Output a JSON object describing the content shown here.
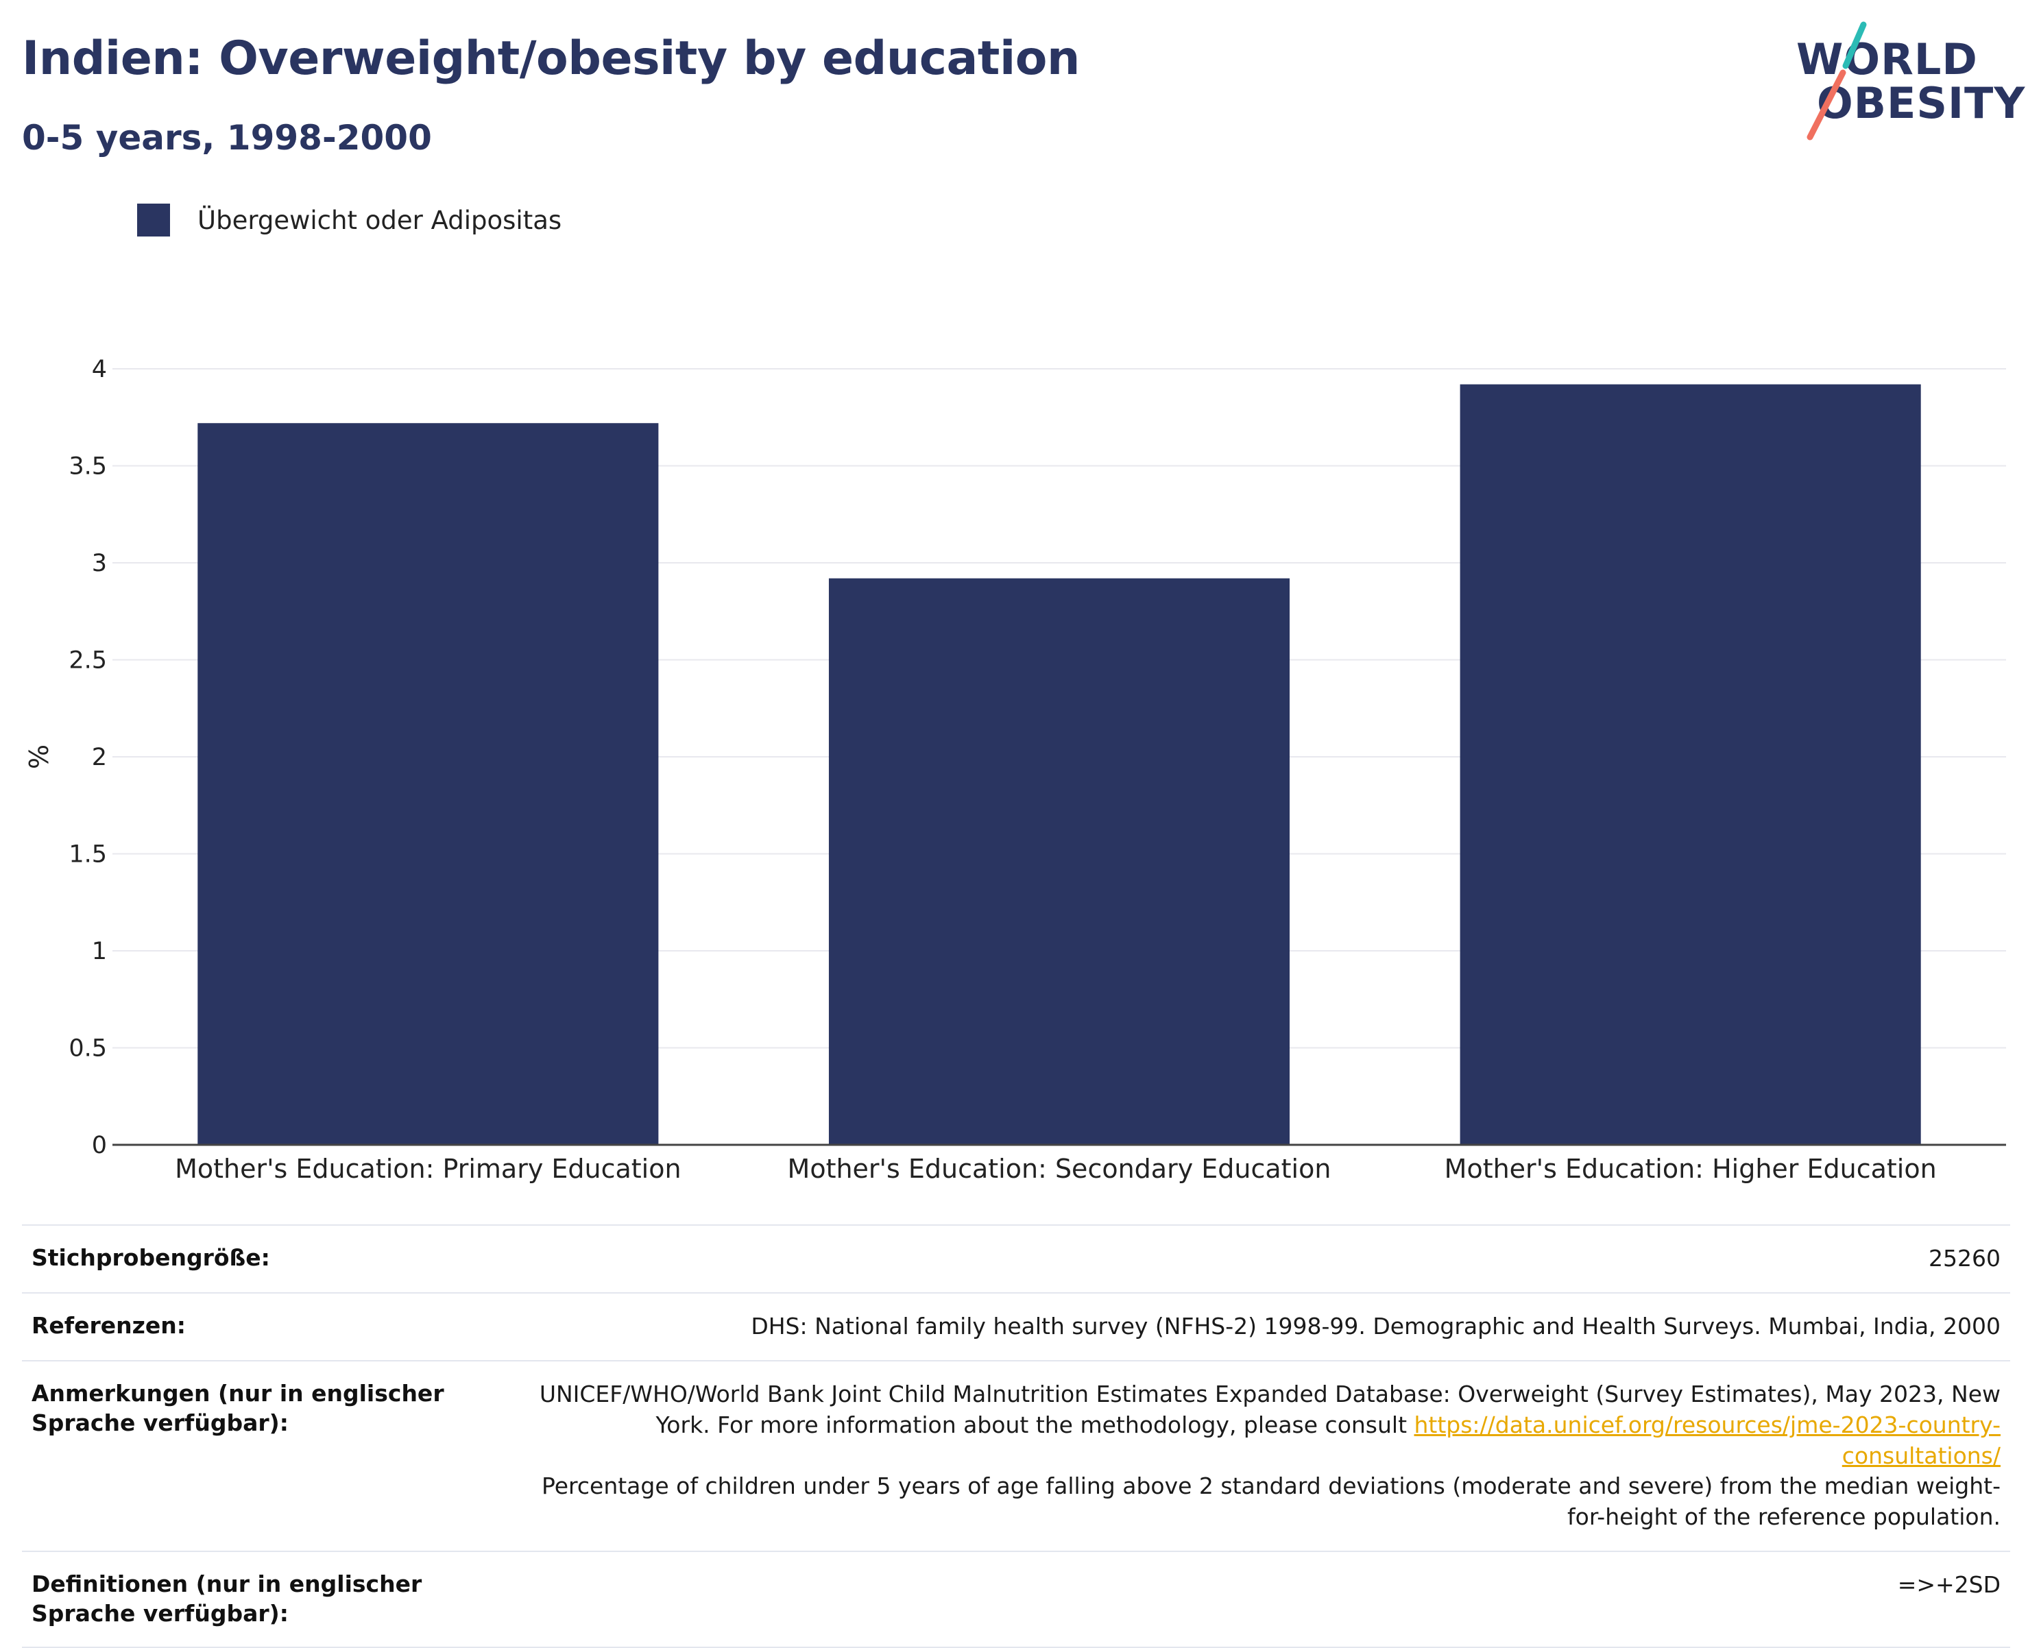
{
  "header": {
    "title": "Indien: Overweight/obesity by education",
    "subtitle": "0-5 years, 1998-2000"
  },
  "logo": {
    "line1": "WORLD",
    "line2": "OBESITY"
  },
  "colors": {
    "bar": "#2a3561",
    "accent_teal": "#2bbbb5",
    "accent_coral": "#f0705f",
    "link": "#e8a800"
  },
  "chart_data": {
    "type": "bar",
    "categories": [
      "Mother's Education: Primary Education",
      "Mother's Education: Secondary Education",
      "Mother's Education: Higher Education"
    ],
    "series": [
      {
        "name": "Übergewicht oder Adipositas",
        "values": [
          3.72,
          2.92,
          3.92
        ]
      }
    ],
    "ylabel": "%",
    "ylim": [
      0,
      4
    ],
    "yticks": [
      "0",
      "0.5",
      "1",
      "1.5",
      "2",
      "2.5",
      "3",
      "3.5",
      "4"
    ],
    "grid": true,
    "legend": "top-left"
  },
  "meta": {
    "sample_size_label": "Stichprobengröße:",
    "sample_size_value": "25260",
    "references_label": "Referenzen:",
    "references_value": "DHS: National family health survey (NFHS-2) 1998-99. Demographic and Health Surveys. Mumbai, India, 2000",
    "notes_label": "Anmerkungen (nur in englischer Sprache verfügbar):",
    "notes_text1": "UNICEF/WHO/World Bank Joint Child Malnutrition Estimates Expanded Database: Overweight (Survey Estimates), May 2023, New York. For more information about the methodology, please consult ",
    "notes_link": "https://data.unicef.org/resources/jme-2023-country-consultations/",
    "notes_text2": "Percentage of children under 5 years of age falling above 2 standard deviations (moderate and severe) from the median weight-for-height of the reference population.",
    "definitions_label": "Definitionen (nur in englischer Sprache verfügbar):",
    "definitions_value": "=>+2SD"
  }
}
